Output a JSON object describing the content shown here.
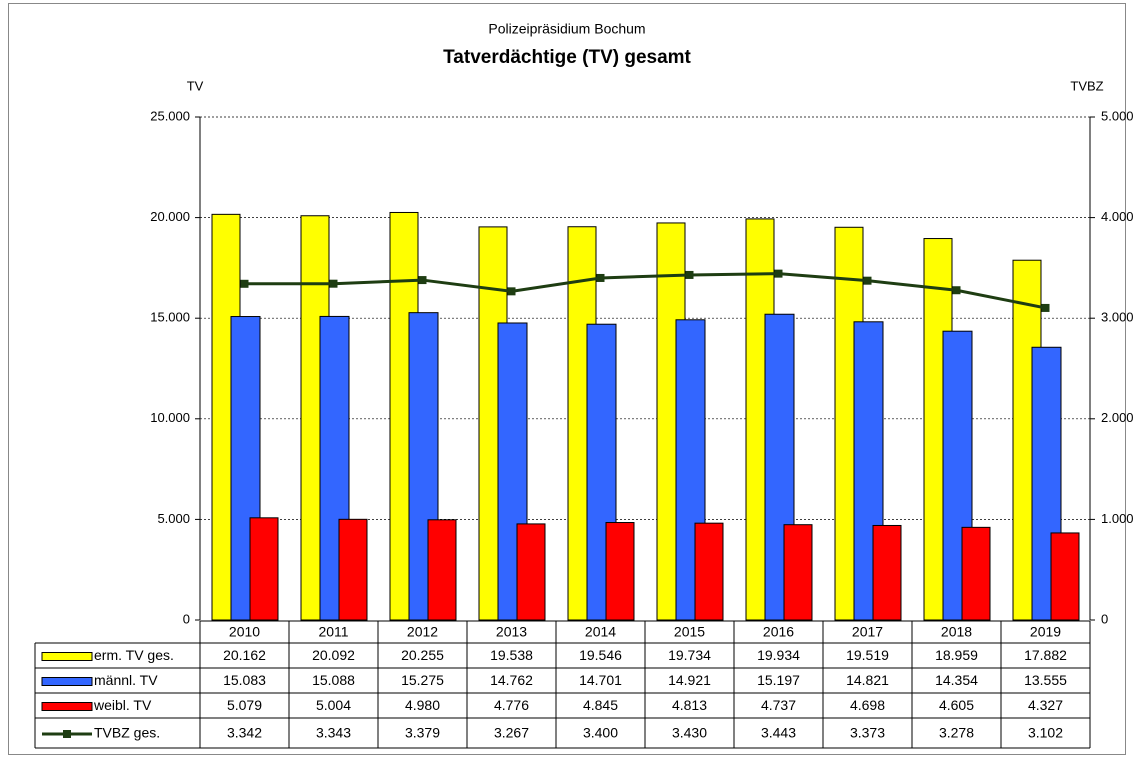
{
  "chart_data": {
    "type": "bar",
    "subtitle": "Polizeipräsidium Bochum",
    "title": "Tatverdächtige (TV) gesamt",
    "ylabel": "TV",
    "y2label": "TVBZ",
    "categories": [
      "2010",
      "2011",
      "2012",
      "2013",
      "2014",
      "2015",
      "2016",
      "2017",
      "2018",
      "2019"
    ],
    "series": [
      {
        "name": "erm. TV ges.",
        "type": "bar",
        "color": "#ffff00",
        "values": [
          20162,
          20092,
          20255,
          19538,
          19546,
          19734,
          19934,
          19519,
          18959,
          17882
        ],
        "value_labels": [
          "20.162",
          "20.092",
          "20.255",
          "19.538",
          "19.546",
          "19.734",
          "19.934",
          "19.519",
          "18.959",
          "17.882"
        ]
      },
      {
        "name": "männl. TV",
        "type": "bar",
        "color": "#3366ff",
        "values": [
          15083,
          15088,
          15275,
          14762,
          14701,
          14921,
          15197,
          14821,
          14354,
          13555
        ],
        "value_labels": [
          "15.083",
          "15.088",
          "15.275",
          "14.762",
          "14.701",
          "14.921",
          "15.197",
          "14.821",
          "14.354",
          "13.555"
        ]
      },
      {
        "name": "weibl. TV",
        "type": "bar",
        "color": "#ff0000",
        "values": [
          5079,
          5004,
          4980,
          4776,
          4845,
          4813,
          4737,
          4698,
          4605,
          4327
        ],
        "value_labels": [
          "5.079",
          "5.004",
          "4.980",
          "4.776",
          "4.845",
          "4.813",
          "4.737",
          "4.698",
          "4.605",
          "4.327"
        ]
      },
      {
        "name": "TVBZ ges.",
        "type": "line",
        "axis": "y2",
        "color": "#1e3d12",
        "values": [
          3342,
          3343,
          3379,
          3267,
          3400,
          3430,
          3443,
          3373,
          3278,
          3102
        ],
        "value_labels": [
          "3.342",
          "3.343",
          "3.379",
          "3.267",
          "3.400",
          "3.430",
          "3.443",
          "3.373",
          "3.278",
          "3.102"
        ]
      }
    ],
    "ylim": [
      0,
      25000
    ],
    "yticks": [
      0,
      {
        "value": 5000,
        "label": "5.000"
      },
      {
        "value": 10000,
        "label": "10.000"
      },
      {
        "value": 15000,
        "label": "15.000"
      },
      {
        "value": 20000,
        "label": "20.000"
      },
      {
        "value": 25000,
        "label": "25.000"
      }
    ],
    "y2lim": [
      0,
      5000
    ],
    "y2ticks": [
      0,
      {
        "value": 1000,
        "label": "1.000"
      },
      {
        "value": 2000,
        "label": "2.000"
      },
      {
        "value": 3000,
        "label": "3.000"
      },
      {
        "value": 4000,
        "label": "4.000"
      },
      {
        "value": 5000,
        "label": "5.000"
      }
    ],
    "grid": true
  }
}
